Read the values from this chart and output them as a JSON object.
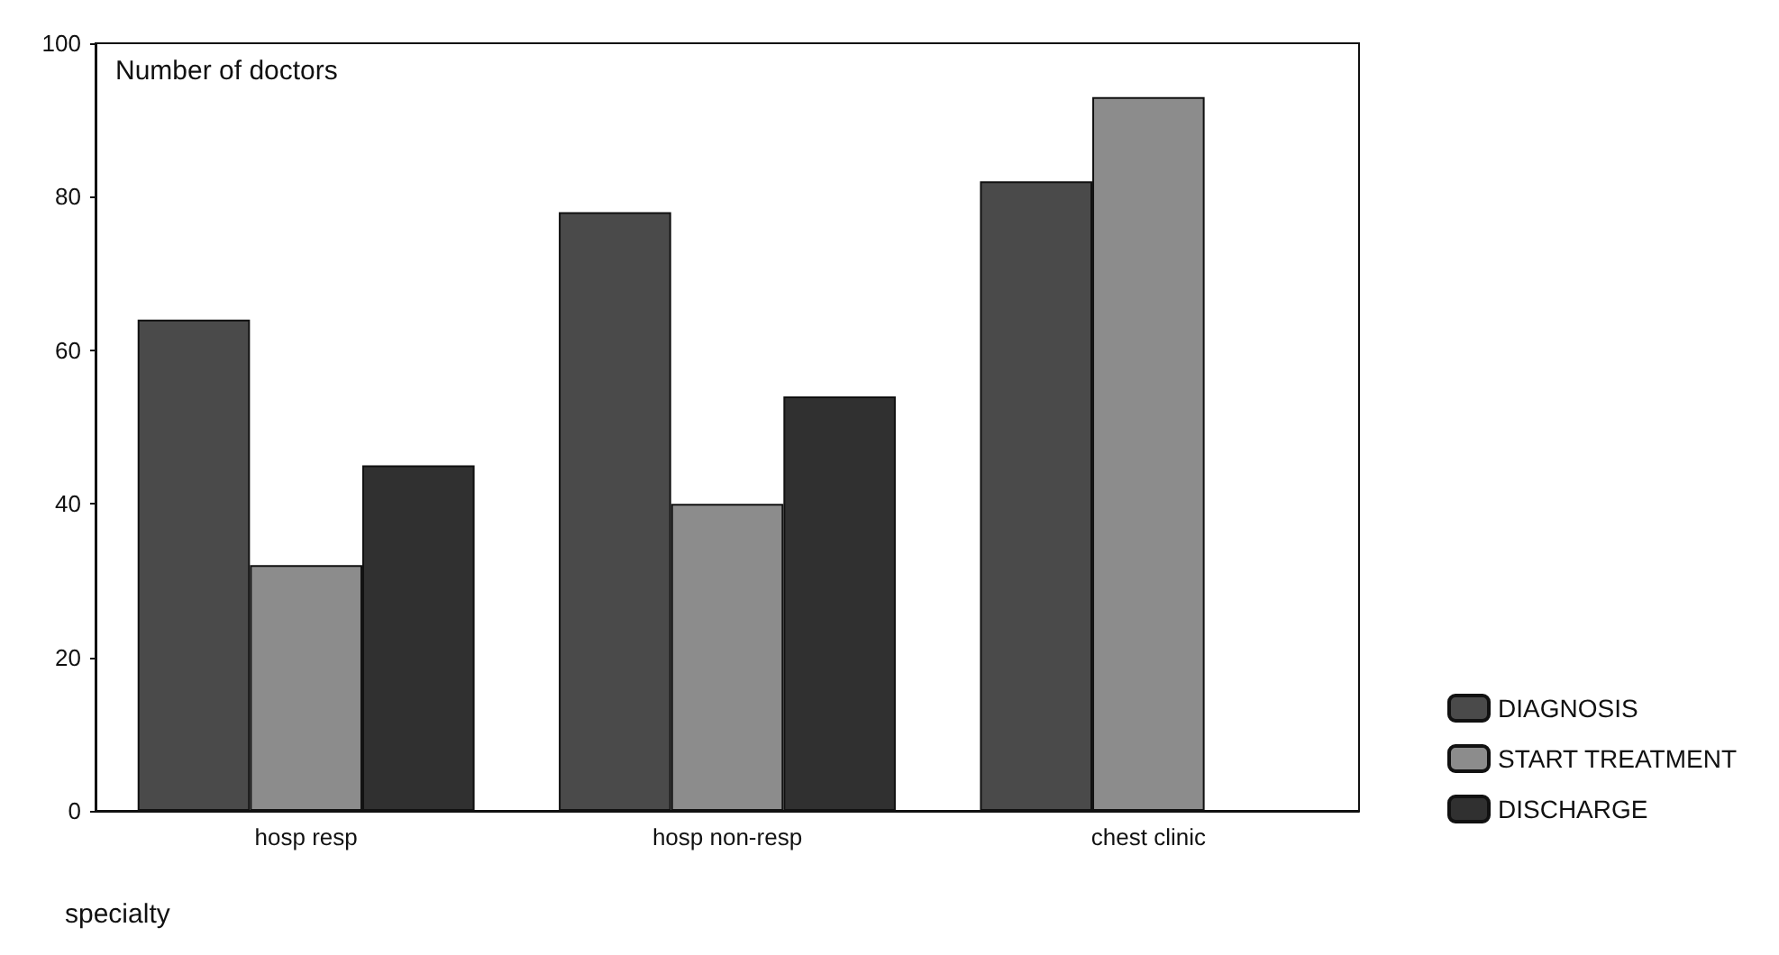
{
  "chart_data": {
    "type": "bar",
    "ylabel": "Number of doctors",
    "xlabel": "specialty",
    "categories": [
      "hosp resp",
      "hosp non-resp",
      "chest clinic"
    ],
    "series": [
      {
        "name": "DIAGNOSIS",
        "color": "#4a4a4a",
        "values": [
          64,
          78,
          82
        ]
      },
      {
        "name": "START TREATMENT",
        "color": "#8c8c8c",
        "values": [
          32,
          40,
          93
        ]
      },
      {
        "name": "DISCHARGE",
        "color": "#303030",
        "values": [
          45,
          54,
          null
        ]
      }
    ],
    "ylim": [
      0,
      100
    ],
    "yticks": [
      0,
      20,
      40,
      60,
      80,
      100
    ],
    "grid": false,
    "legend": "bottom right"
  }
}
